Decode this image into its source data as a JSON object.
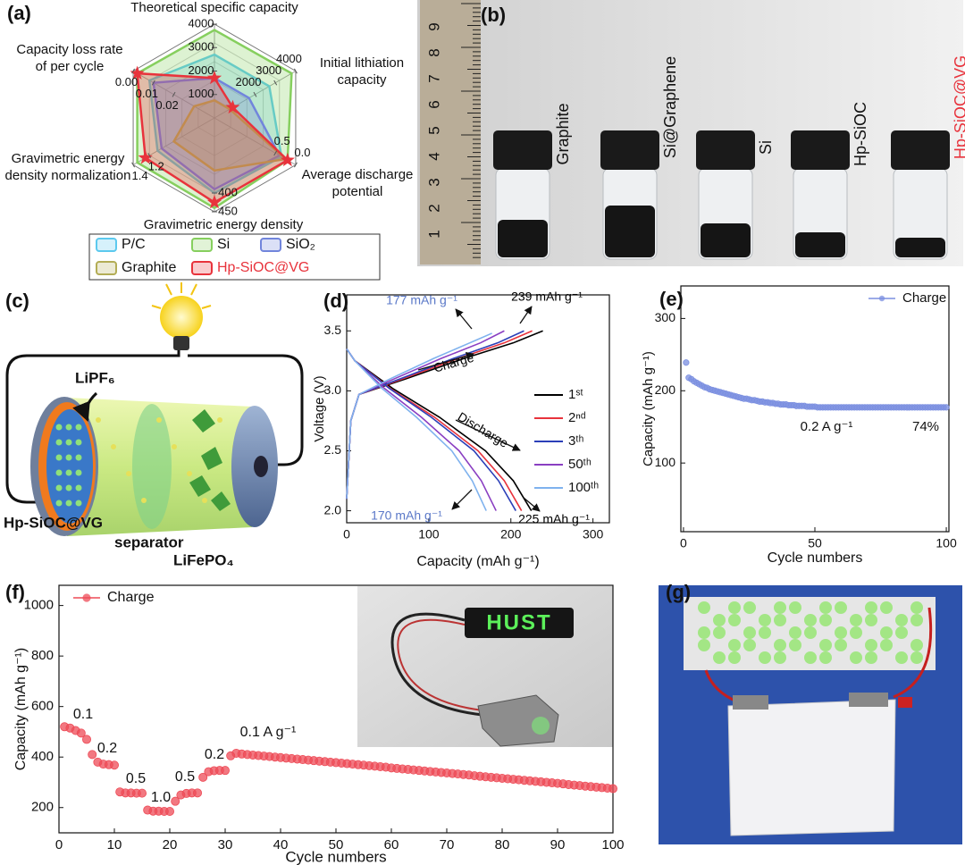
{
  "panel_labels": [
    "(a)",
    "(b)",
    "(c)",
    "(d)",
    "(e)",
    "(f)",
    "(g)"
  ],
  "chart_data": [
    {
      "type": "radar",
      "axes": [
        {
          "title_lines": [
            "Theoretical specific capacity"
          ],
          "lim": [
            0,
            4000
          ],
          "ticks": [
            1000,
            2000,
            3000,
            4000
          ]
        },
        {
          "title_lines": [
            "Initial lithiation",
            "capacity"
          ],
          "lim": [
            0,
            4000
          ],
          "ticks": [
            2000,
            3000,
            4000
          ]
        },
        {
          "title_lines": [
            "Average discharge",
            "potential"
          ],
          "lim": [
            2,
            0
          ],
          "ticks": [
            0.5,
            {
              "value": 0,
              "label": "0.0"
            }
          ]
        },
        {
          "title_lines": [
            "Gravimetric energy density"
          ],
          "lim": [
            200,
            450
          ],
          "ticks": [
            400,
            450
          ]
        },
        {
          "title_lines": [
            "Gravimetric energy",
            "density normalization"
          ],
          "lim": [
            0.4,
            1.4
          ],
          "ticks": [
            1.2,
            1.4
          ]
        },
        {
          "title_lines": [
            "Capacity loss rate",
            "of per cycle"
          ],
          "lim": [
            0.04,
            0
          ],
          "ticks": [
            {
              "value": 0,
              "label": "0.00"
            },
            0.01,
            0.02
          ]
        }
      ],
      "series": [
        {
          "name": "P/C",
          "color": "#5cc9ee",
          "values": [
            2700,
            2700,
            0.35,
            400,
            1.1,
            0.008
          ]
        },
        {
          "name": "Si",
          "color": "#86cf5e",
          "values": [
            3750,
            3800,
            0.2,
            440,
            1.35,
            0.002
          ]
        },
        {
          "name": "SiO₂",
          "color": "#7185dc",
          "values": [
            1700,
            1700,
            0.4,
            390,
            1.05,
            0.01
          ]
        },
        {
          "name": "Graphite",
          "color": "#b3ad55",
          "values": [
            750,
            750,
            0.25,
            340,
            0.9,
            0.03
          ]
        },
        {
          "name": "Hp-SiOC@VG",
          "color": "#e8333c",
          "marker": "star",
          "values": [
            1700,
            900,
            0.2,
            425,
            1.25,
            0.002
          ]
        }
      ]
    },
    {
      "type": "line",
      "xlabel": "Capacity (mAh g⁻¹)",
      "ylabel": "Voltage (V)",
      "xlim": [
        0,
        320
      ],
      "ylim": [
        1.9,
        3.8
      ],
      "xticks": [
        0,
        100,
        200,
        300
      ],
      "yticks": [
        {
          "value": 2,
          "label": "2.0"
        },
        2.5,
        {
          "value": 3,
          "label": "3.0"
        },
        3.5
      ],
      "series": [
        {
          "name": "1ˢᵗ",
          "color": "#000000",
          "charge": {
            "x": [
              0,
              5,
              15,
              72,
              143,
              203,
              239
            ],
            "values": [
              2.1,
              2.75,
              2.97,
              3.1,
              3.27,
              3.4,
              3.5
            ]
          },
          "discharge": {
            "x": [
              0,
              10,
              56,
              113,
              169,
              203,
              225
            ],
            "values": [
              3.35,
              3.25,
              3.02,
              2.78,
              2.5,
              2.25,
              2.0
            ]
          }
        },
        {
          "name": "2ⁿᵈ",
          "color": "#e8333c",
          "charge": {
            "x": [
              0,
              5,
              15,
              68,
              136,
              192,
              226
            ],
            "values": [
              2.1,
              2.75,
              2.97,
              3.1,
              3.27,
              3.4,
              3.5
            ]
          },
          "discharge": {
            "x": [
              0,
              10,
              53,
              107,
              160,
              192,
              213
            ],
            "values": [
              3.35,
              3.25,
              3.02,
              2.78,
              2.5,
              2.25,
              2.0
            ]
          }
        },
        {
          "name": "3ᵗʰ",
          "color": "#2b3fb8",
          "charge": {
            "x": [
              0,
              5,
              15,
              65,
              130,
              184,
              216
            ],
            "values": [
              2.1,
              2.75,
              2.97,
              3.1,
              3.27,
              3.4,
              3.5
            ]
          },
          "discharge": {
            "x": [
              0,
              10,
              52,
              103,
              155,
              185,
              206
            ],
            "values": [
              3.35,
              3.25,
              3.02,
              2.78,
              2.5,
              2.25,
              2.0
            ]
          }
        },
        {
          "name": "50ᵗʰ",
          "color": "#8a3fc2",
          "charge": {
            "x": [
              0,
              5,
              15,
              58,
              115,
              163,
              192
            ],
            "values": [
              2.1,
              2.75,
              2.97,
              3.1,
              3.27,
              3.4,
              3.5
            ]
          },
          "discharge": {
            "x": [
              0,
              10,
              46,
              91,
              137,
              164,
              182
            ],
            "values": [
              3.35,
              3.25,
              3.02,
              2.78,
              2.5,
              2.25,
              2.0
            ]
          }
        },
        {
          "name": "100ᵗʰ",
          "color": "#7fb2ee",
          "charge": {
            "x": [
              0,
              5,
              15,
              53,
              106,
              150,
              177
            ],
            "values": [
              2.1,
              2.75,
              2.97,
              3.1,
              3.27,
              3.4,
              3.48
            ]
          },
          "discharge": {
            "x": [
              0,
              10,
              43,
              85,
              128,
              153,
              170
            ],
            "values": [
              3.35,
              3.25,
              3.02,
              2.78,
              2.5,
              2.25,
              2.0
            ]
          }
        }
      ],
      "annotations": [
        {
          "text": "177 mAh g⁻¹",
          "color": "#5a78c8"
        },
        {
          "text": "239 mAh g⁻¹",
          "color": "#000000"
        },
        {
          "text": "Charge",
          "color": "#000000"
        },
        {
          "text": "Discharge",
          "color": "#000000"
        },
        {
          "text": "170 mAh g⁻¹",
          "color": "#5a78c8"
        },
        {
          "text": "225 mAh g⁻¹",
          "color": "#000000"
        }
      ]
    },
    {
      "type": "scatter",
      "xlabel": "Cycle numbers",
      "ylabel": "Capacity (mAh g⁻¹)",
      "xlim": [
        -1,
        101
      ],
      "ylim": [
        5,
        345
      ],
      "xticks": [
        0,
        50,
        100
      ],
      "yticks": [
        100,
        200,
        300
      ],
      "legend": "upper right",
      "series": [
        {
          "name": "Charge",
          "color": "#7b8fe0",
          "x": [
            1,
            2,
            3,
            4,
            5,
            6,
            7,
            8,
            9,
            10,
            11,
            12,
            13,
            14,
            15,
            16,
            17,
            18,
            19,
            20,
            21,
            22,
            23,
            24,
            25,
            26,
            27,
            28,
            29,
            30,
            31,
            32,
            33,
            34,
            35,
            36,
            37,
            38,
            39,
            40,
            41,
            42,
            43,
            44,
            45,
            46,
            47,
            48,
            49,
            50,
            51,
            52,
            53,
            54,
            55,
            56,
            57,
            58,
            59,
            60,
            61,
            62,
            63,
            64,
            65,
            66,
            67,
            68,
            69,
            70,
            71,
            72,
            73,
            74,
            75,
            76,
            77,
            78,
            79,
            80,
            81,
            82,
            83,
            84,
            85,
            86,
            87,
            88,
            89,
            90,
            91,
            92,
            93,
            94,
            95,
            96,
            97,
            98,
            99,
            100
          ],
          "values": [
            239,
            218,
            216,
            213,
            211,
            209,
            207,
            205,
            204,
            202,
            201,
            200,
            199,
            198,
            197,
            196,
            195,
            194,
            193,
            192,
            191,
            190,
            189,
            189,
            188,
            187,
            187,
            186,
            185,
            185,
            184,
            184,
            183,
            183,
            182,
            182,
            181,
            181,
            181,
            180,
            180,
            180,
            179,
            179,
            179,
            179,
            178,
            178,
            178,
            178,
            177,
            177,
            177,
            177,
            177,
            177,
            177,
            177,
            177,
            177,
            177,
            177,
            177,
            177,
            177,
            177,
            177,
            177,
            177,
            177,
            177,
            177,
            177,
            177,
            177,
            177,
            177,
            177,
            177,
            177,
            177,
            177,
            177,
            177,
            177,
            177,
            177,
            177,
            177,
            177,
            177,
            177,
            177,
            177,
            177,
            177,
            177,
            177,
            177,
            177
          ]
        }
      ],
      "annotations": [
        {
          "text": "0.2 A g⁻¹"
        },
        {
          "text": "74%"
        }
      ]
    },
    {
      "type": "scatter",
      "xlabel": "Cycle numbers",
      "ylabel": "Capacity (mAh g⁻¹)",
      "xlim": [
        0,
        100
      ],
      "ylim": [
        100,
        1080
      ],
      "xticks": [
        0,
        10,
        20,
        30,
        40,
        50,
        60,
        70,
        80,
        90,
        100
      ],
      "yticks": [
        200,
        400,
        600,
        800,
        1000
      ],
      "legend": "upper left",
      "series": [
        {
          "name": "Charge",
          "color": "#ee4b57",
          "x": [
            1,
            2,
            3,
            4,
            5,
            6,
            7,
            8,
            9,
            10,
            11,
            12,
            13,
            14,
            15,
            16,
            17,
            18,
            19,
            20,
            21,
            22,
            23,
            24,
            25,
            26,
            27,
            28,
            29,
            30,
            31,
            32,
            33,
            34,
            35,
            36,
            37,
            38,
            39,
            40,
            41,
            42,
            43,
            44,
            45,
            46,
            47,
            48,
            49,
            50,
            51,
            52,
            53,
            54,
            55,
            56,
            57,
            58,
            59,
            60,
            61,
            62,
            63,
            64,
            65,
            66,
            67,
            68,
            69,
            70,
            71,
            72,
            73,
            74,
            75,
            76,
            77,
            78,
            79,
            80,
            81,
            82,
            83,
            84,
            85,
            86,
            87,
            88,
            89,
            90,
            91,
            92,
            93,
            94,
            95,
            96,
            97,
            98,
            99,
            100
          ],
          "values": [
            520,
            515,
            505,
            495,
            470,
            410,
            380,
            372,
            370,
            368,
            262,
            258,
            258,
            257,
            257,
            190,
            186,
            186,
            185,
            185,
            225,
            250,
            256,
            258,
            258,
            320,
            342,
            346,
            347,
            347,
            405,
            415,
            412,
            410,
            408,
            406,
            404,
            402,
            400,
            398,
            396,
            394,
            392,
            390,
            388,
            386,
            384,
            382,
            380,
            378,
            376,
            374,
            372,
            370,
            368,
            366,
            364,
            362,
            360,
            357,
            355,
            353,
            351,
            349,
            347,
            345,
            343,
            341,
            339,
            337,
            335,
            333,
            331,
            329,
            326,
            324,
            322,
            320,
            318,
            316,
            314,
            312,
            310,
            308,
            306,
            304,
            302,
            300,
            298,
            296,
            294,
            291,
            289,
            287,
            285,
            283,
            281,
            279,
            277,
            275
          ]
        }
      ],
      "annotations": [
        {
          "text": "0.1"
        },
        {
          "text": "0.2"
        },
        {
          "text": "0.5"
        },
        {
          "text": "1.0"
        },
        {
          "text": "0.5"
        },
        {
          "text": "0.2"
        },
        {
          "text": "0.1 A g⁻¹"
        }
      ]
    }
  ],
  "photo_b": {
    "ruler_labels": [
      9,
      8,
      7,
      6,
      5,
      4,
      3,
      2,
      1
    ],
    "samples": [
      {
        "label": "Graphite",
        "color": "#111111"
      },
      {
        "label": "Si@Graphene",
        "color": "#111111"
      },
      {
        "label": "Si",
        "color": "#111111"
      },
      {
        "label": "Hp-SiOC",
        "color": "#111111"
      },
      {
        "label": "Hp-SiOC@VG",
        "color": "#e8333c"
      }
    ]
  },
  "schematic_c": {
    "electrolyte": "LiPF₆",
    "anode": "Hp-SiOC@VG",
    "separator": "separator",
    "cathode": "LiFePO₄"
  },
  "photo_f_inset": {
    "display_text": "HUST"
  }
}
